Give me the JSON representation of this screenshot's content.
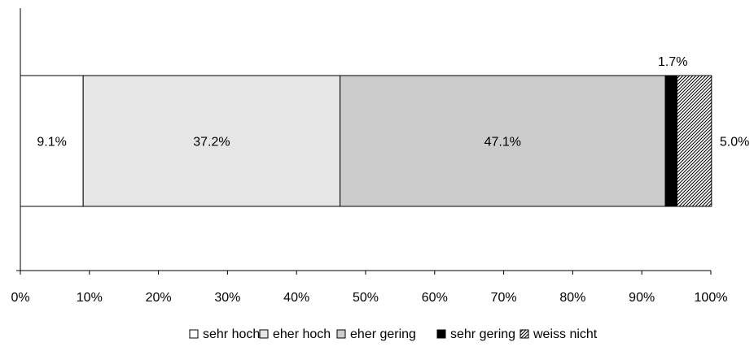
{
  "chart_data": {
    "type": "bar",
    "orientation": "horizontal",
    "stacked": "percent",
    "categories": [
      ""
    ],
    "series": [
      {
        "name": "sehr hoch",
        "values": [
          9.1
        ],
        "label": "9.1%",
        "color": "#ffffff",
        "pattern": "none"
      },
      {
        "name": "eher hoch",
        "values": [
          37.2
        ],
        "label": "37.2%",
        "color": "#e6e6e6",
        "pattern": "none"
      },
      {
        "name": "eher gering",
        "values": [
          47.1
        ],
        "label": "47.1%",
        "color": "#cccccc",
        "pattern": "none"
      },
      {
        "name": "sehr gering",
        "values": [
          1.7
        ],
        "label": "1.7%",
        "color": "#000000",
        "pattern": "none"
      },
      {
        "name": "weiss nicht",
        "values": [
          5.0
        ],
        "label": "5.0%",
        "color": "#ffffff",
        "pattern": "diagonal-hatch"
      }
    ],
    "xlim": [
      0,
      100
    ],
    "x_ticks": [
      0,
      10,
      20,
      30,
      40,
      50,
      60,
      70,
      80,
      90,
      100
    ],
    "x_tick_labels": [
      "0%",
      "10%",
      "20%",
      "30%",
      "40%",
      "50%",
      "60%",
      "70%",
      "80%",
      "90%",
      "100%"
    ],
    "grid": false,
    "legend_position": "bottom"
  }
}
